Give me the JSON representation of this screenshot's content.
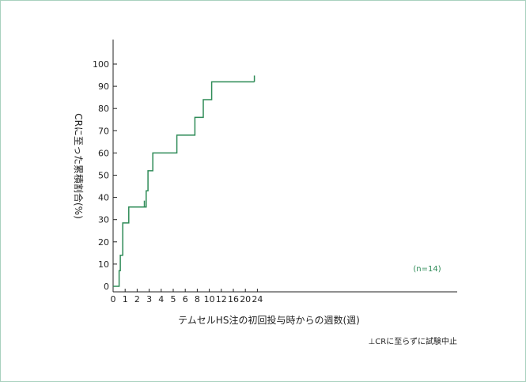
{
  "chart_data": {
    "type": "line",
    "step": true,
    "xlabel": "テムセルHS注の初回投与時からの週数(週)",
    "ylabel": "CRに至った累積割合(%)",
    "xticks": [
      0,
      1,
      2,
      3,
      4,
      5,
      6,
      8,
      10,
      12,
      16,
      20,
      24
    ],
    "x_axis_breaks": [
      {
        "range": [
          0,
          6
        ],
        "spacing": "1 week per unit"
      },
      {
        "range": [
          6,
          12
        ],
        "spacing": "2 weeks per unit"
      },
      {
        "range": [
          12,
          24
        ],
        "spacing": "4 weeks per unit"
      }
    ],
    "yticks": [
      0,
      10,
      20,
      30,
      40,
      50,
      60,
      70,
      80,
      90,
      100
    ],
    "ylim": [
      0,
      100
    ],
    "grid": false,
    "colors": {
      "line": "#2e8b57",
      "annotation": "#2e8b57",
      "frame": "#a9d1bf"
    },
    "annotation": "(n=14)",
    "footnote": "⊥CRに至らずに試験中止",
    "series": [
      {
        "x": [
          0,
          0.5,
          0.5,
          0.6,
          0.6,
          0.8,
          0.8,
          1.3,
          1.3,
          2.75,
          2.75,
          2.9,
          2.9,
          3.3,
          3.3,
          5.3,
          5.3,
          7.6,
          7.6,
          9.0,
          9.0,
          10.4,
          10.4,
          23
        ],
        "y": [
          0,
          0,
          7,
          7,
          14,
          14,
          28.5,
          28.5,
          35.7,
          35.7,
          43,
          43,
          52,
          52,
          60,
          60,
          68,
          68,
          76,
          76,
          84,
          84,
          92,
          92
        ]
      }
    ],
    "censored": [
      {
        "x": 2.6,
        "y": 35.7
      },
      {
        "x": 23,
        "y": 92
      }
    ]
  }
}
